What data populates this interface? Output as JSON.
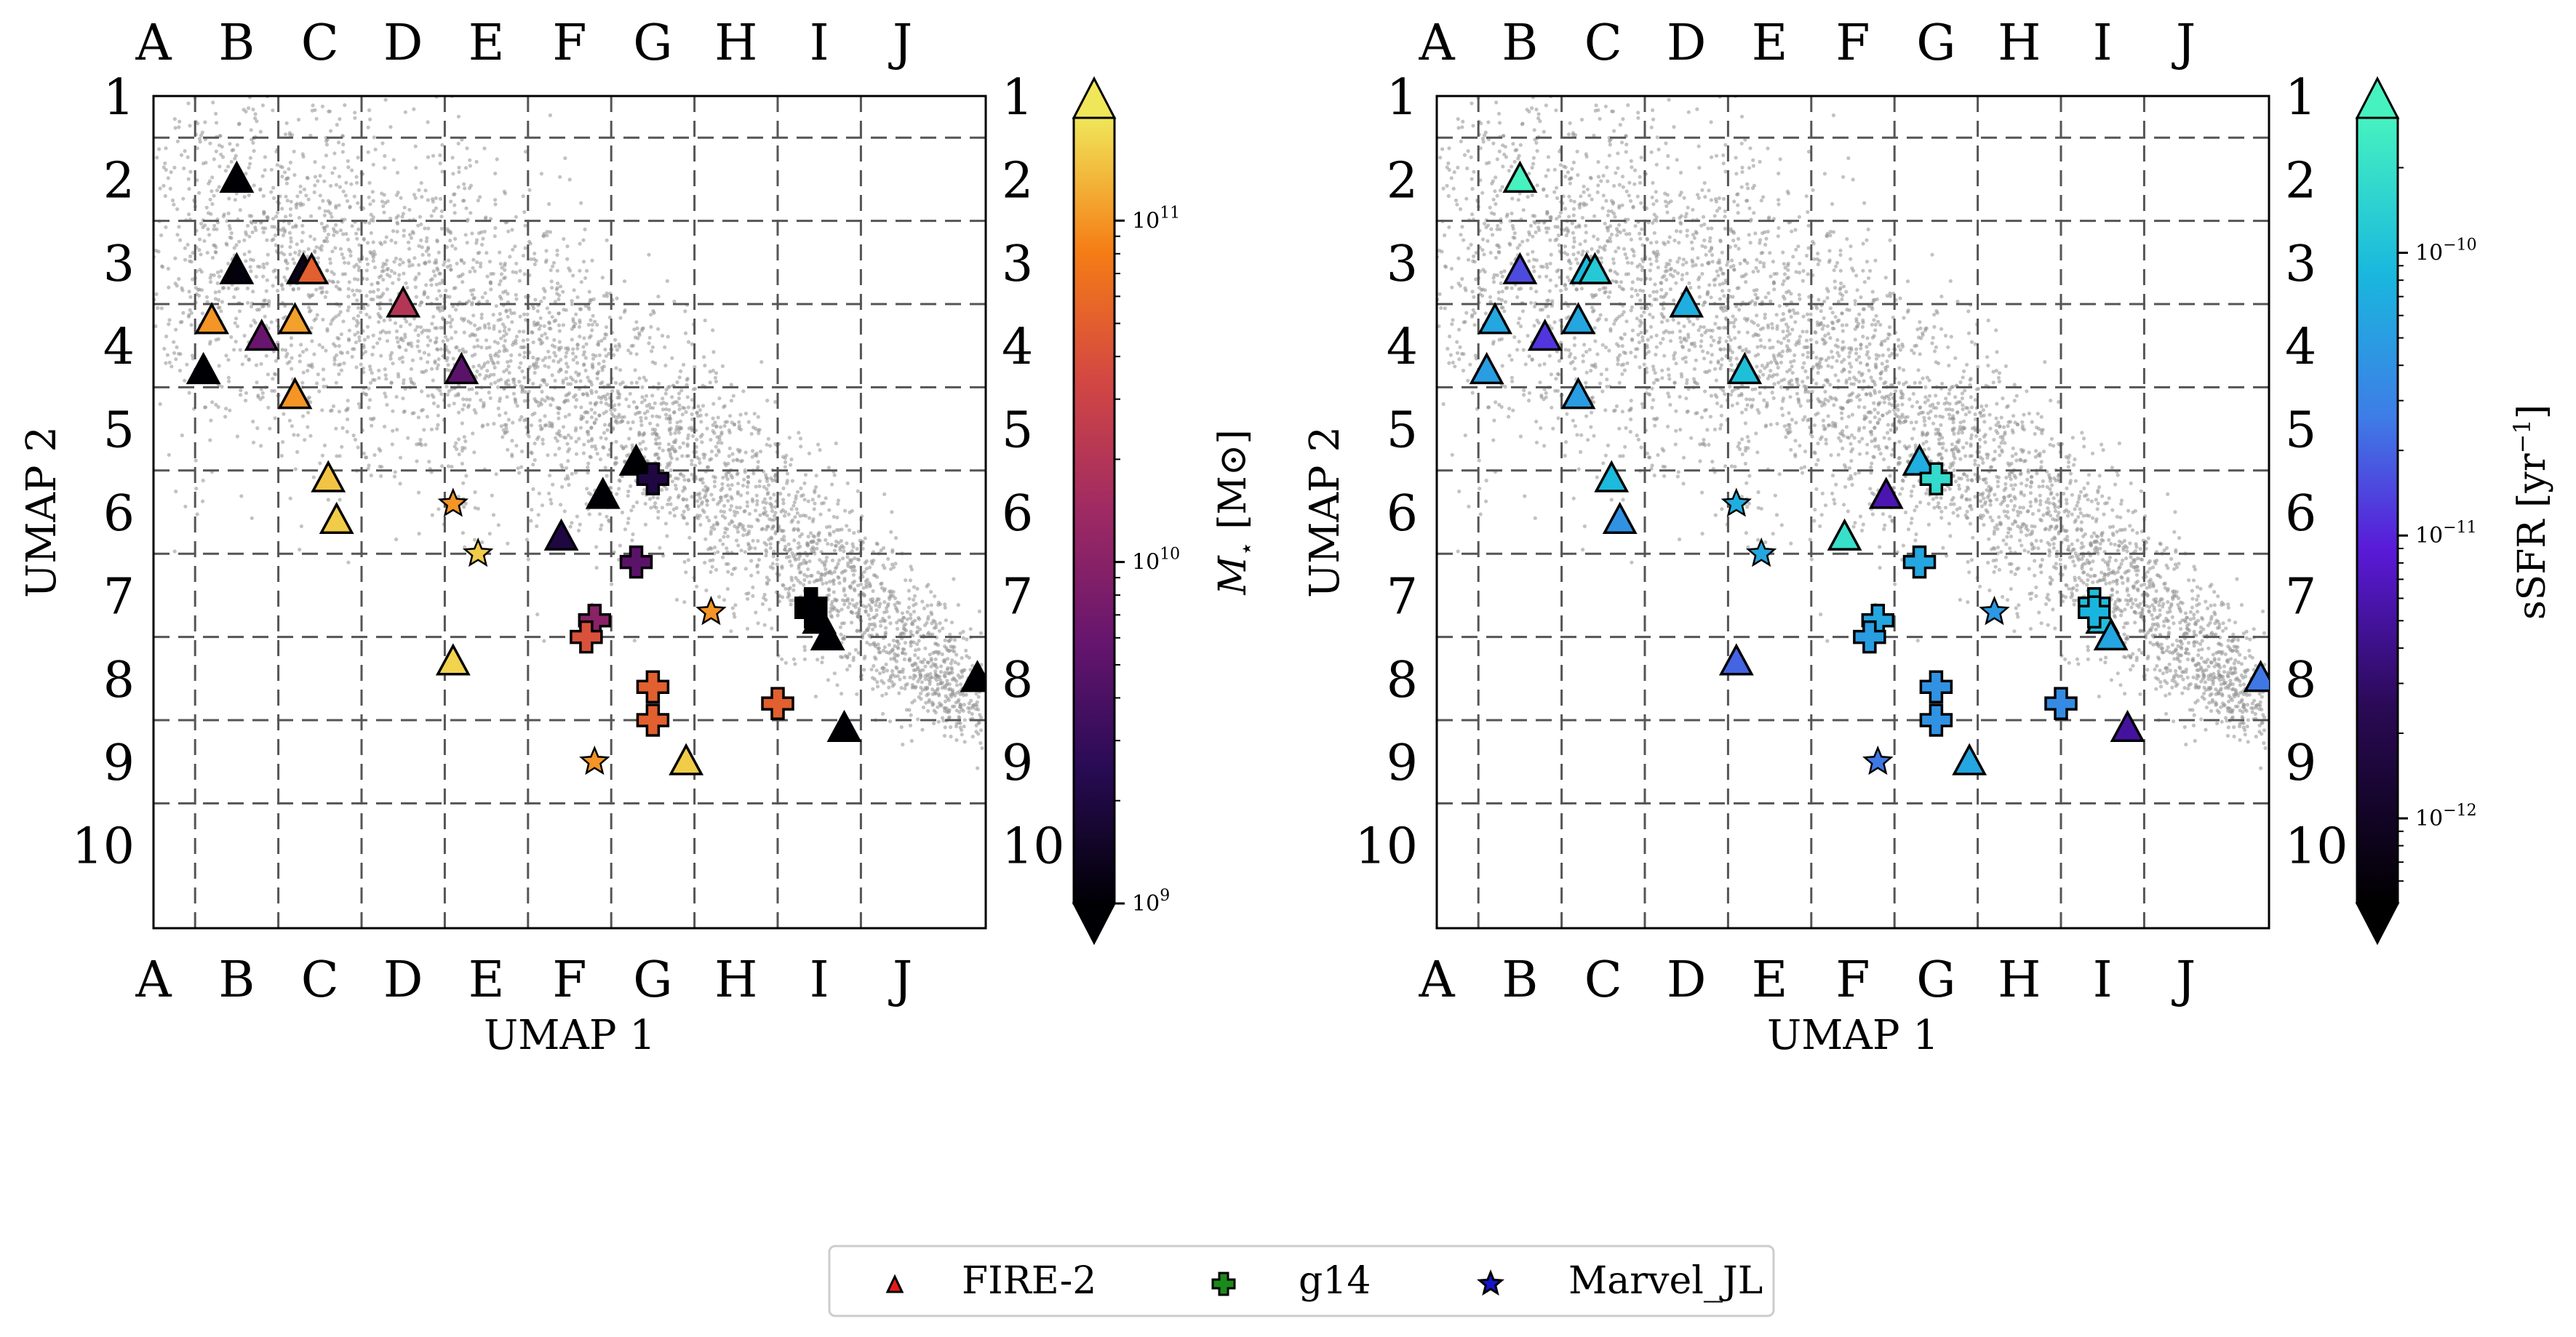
{
  "colors": {
    "background_points": "#8f8f8f",
    "grid": "#555555",
    "legend_fire2": "#e41a1c",
    "legend_g14": "#1a8a1a",
    "legend_marvel": "#1515c8"
  },
  "grid_cells": {
    "columns": [
      "A",
      "B",
      "C",
      "D",
      "E",
      "F",
      "G",
      "H",
      "I",
      "J"
    ],
    "rows": [
      "1",
      "2",
      "3",
      "4",
      "5",
      "6",
      "7",
      "8",
      "9",
      "10"
    ]
  },
  "legend": {
    "items": [
      {
        "label": "FIRE-2",
        "marker": "triangle",
        "icon": "triangle-marker-icon"
      },
      {
        "label": "g14",
        "marker": "plus",
        "icon": "plus-marker-icon"
      },
      {
        "label": "Marvel_JL",
        "marker": "star",
        "icon": "star-marker-icon"
      }
    ]
  },
  "chart_data": [
    {
      "type": "scatter",
      "xlabel": "UMAP 1",
      "ylabel": "UMAP 2",
      "xlim": [
        0,
        10
      ],
      "ylim": [
        10,
        0
      ],
      "grid": true,
      "background": "UMAP embedding of simulated galaxies (grey points)",
      "colorbar": {
        "label": "M⋆ [M⊙]",
        "label_main": "M",
        "label_sub": "⋆",
        "label_unit": " [M⊙]",
        "scale": "log",
        "colormap": "inferno",
        "range": [
          1000000000.0,
          200000000000.0
        ],
        "ticks": [
          {
            "value": 1000000000.0,
            "base": "10",
            "exp": "9"
          },
          {
            "value": 10000000000.0,
            "base": "10",
            "exp": "10"
          },
          {
            "value": 100000000000.0,
            "base": "10",
            "exp": "11"
          }
        ]
      },
      "series": [
        {
          "name": "FIRE-2",
          "marker": "triangle",
          "points": [
            {
              "x": 1.0,
              "y": 1.0,
              "c": 1000000000.0
            },
            {
              "x": 1.0,
              "y": 2.1,
              "c": 1100000000.0
            },
            {
              "x": 1.8,
              "y": 2.1,
              "c": 1300000000.0
            },
            {
              "x": 1.9,
              "y": 2.1,
              "c": 50000000000.0
            },
            {
              "x": 0.7,
              "y": 2.7,
              "c": 100000000000.0
            },
            {
              "x": 1.3,
              "y": 2.9,
              "c": 6000000000.0
            },
            {
              "x": 1.7,
              "y": 2.7,
              "c": 110000000000.0
            },
            {
              "x": 3.0,
              "y": 2.5,
              "c": 20000000000.0
            },
            {
              "x": 0.6,
              "y": 3.3,
              "c": 1000000000.0
            },
            {
              "x": 1.7,
              "y": 3.6,
              "c": 100000000000.0
            },
            {
              "x": 3.7,
              "y": 3.3,
              "c": 5000000000.0
            },
            {
              "x": 2.1,
              "y": 4.6,
              "c": 150000000000.0
            },
            {
              "x": 2.2,
              "y": 5.1,
              "c": 160000000000.0
            },
            {
              "x": 5.8,
              "y": 4.4,
              "c": 1000000000.0
            },
            {
              "x": 5.4,
              "y": 4.8,
              "c": 1000000000.0
            },
            {
              "x": 4.9,
              "y": 5.3,
              "c": 2000000000.0
            },
            {
              "x": 3.6,
              "y": 6.8,
              "c": 170000000000.0
            },
            {
              "x": 8.0,
              "y": 6.3,
              "c": 1000000000.0
            },
            {
              "x": 8.1,
              "y": 6.5,
              "c": 1000000000.0
            },
            {
              "x": 8.3,
              "y": 7.6,
              "c": 1000000000.0
            },
            {
              "x": 6.4,
              "y": 8.0,
              "c": 160000000000.0
            },
            {
              "x": 9.9,
              "y": 7.0,
              "c": 1000000000.0
            }
          ]
        },
        {
          "name": "g14",
          "marker": "plus",
          "points": [
            {
              "x": 6.0,
              "y": 4.6,
              "c": 2000000000.0
            },
            {
              "x": 5.8,
              "y": 5.6,
              "c": 5000000000.0
            },
            {
              "x": 5.3,
              "y": 6.3,
              "c": 10000000000.0
            },
            {
              "x": 5.2,
              "y": 6.5,
              "c": 40000000000.0
            },
            {
              "x": 7.9,
              "y": 6.1,
              "c": 1000000000.0
            },
            {
              "x": 7.9,
              "y": 6.2,
              "c": 1000000000.0
            },
            {
              "x": 6.0,
              "y": 7.1,
              "c": 50000000000.0
            },
            {
              "x": 6.0,
              "y": 7.5,
              "c": 50000000000.0
            },
            {
              "x": 7.5,
              "y": 7.3,
              "c": 50000000000.0
            }
          ]
        },
        {
          "name": "Marvel_JL",
          "marker": "star",
          "points": [
            {
              "x": 3.6,
              "y": 4.9,
              "c": 100000000000.0
            },
            {
              "x": 3.9,
              "y": 5.5,
              "c": 160000000000.0
            },
            {
              "x": 6.7,
              "y": 6.2,
              "c": 100000000000.0
            },
            {
              "x": 5.3,
              "y": 8.0,
              "c": 100000000000.0
            }
          ]
        }
      ]
    },
    {
      "type": "scatter",
      "xlabel": "UMAP 1",
      "ylabel": "UMAP 2",
      "xlim": [
        0,
        10
      ],
      "ylim": [
        10,
        0
      ],
      "grid": true,
      "background": "UMAP embedding of simulated galaxies (grey points)",
      "colorbar": {
        "label": "sSFR [yr⁻¹]",
        "label_main": "sSFR [yr",
        "label_sup": "−1",
        "label_end": "]",
        "scale": "log",
        "colormap": "cool (black-purple-blue-cyan-aquamarine)",
        "range": [
          5e-13,
          3e-10
        ],
        "ticks": [
          {
            "value": 1e-12,
            "base": "10",
            "exp": "−12"
          },
          {
            "value": 1e-11,
            "base": "10",
            "exp": "−11"
          },
          {
            "value": 1e-10,
            "base": "10",
            "exp": "−10"
          }
        ]
      },
      "series": [
        {
          "name": "FIRE-2",
          "marker": "triangle",
          "points": [
            {
              "x": 1.0,
              "y": 1.0,
              "c": 3e-10
            },
            {
              "x": 1.0,
              "y": 2.1,
              "c": 1.5e-11
            },
            {
              "x": 1.8,
              "y": 2.1,
              "c": 9e-11
            },
            {
              "x": 1.9,
              "y": 2.1,
              "c": 1.2e-10
            },
            {
              "x": 0.7,
              "y": 2.7,
              "c": 6e-11
            },
            {
              "x": 1.3,
              "y": 2.9,
              "c": 1.2e-11
            },
            {
              "x": 1.7,
              "y": 2.7,
              "c": 6e-11
            },
            {
              "x": 3.0,
              "y": 2.5,
              "c": 7e-11
            },
            {
              "x": 0.6,
              "y": 3.3,
              "c": 5e-11
            },
            {
              "x": 1.7,
              "y": 3.6,
              "c": 5e-11
            },
            {
              "x": 3.7,
              "y": 3.3,
              "c": 1e-10
            },
            {
              "x": 2.1,
              "y": 4.6,
              "c": 9e-11
            },
            {
              "x": 2.2,
              "y": 5.1,
              "c": 4e-11
            },
            {
              "x": 5.8,
              "y": 4.4,
              "c": 7e-11
            },
            {
              "x": 5.4,
              "y": 4.8,
              "c": 6e-12
            },
            {
              "x": 4.9,
              "y": 5.3,
              "c": 2e-10
            },
            {
              "x": 3.6,
              "y": 6.8,
              "c": 2e-11
            },
            {
              "x": 8.0,
              "y": 6.3,
              "c": 1e-10
            },
            {
              "x": 8.1,
              "y": 6.5,
              "c": 6e-11
            },
            {
              "x": 8.3,
              "y": 7.6,
              "c": 5e-12
            },
            {
              "x": 6.4,
              "y": 8.0,
              "c": 6e-11
            },
            {
              "x": 9.9,
              "y": 7.0,
              "c": 2.5e-11
            }
          ]
        },
        {
          "name": "g14",
          "marker": "plus",
          "points": [
            {
              "x": 6.0,
              "y": 4.6,
              "c": 1.8e-10
            },
            {
              "x": 5.8,
              "y": 5.6,
              "c": 6e-11
            },
            {
              "x": 5.3,
              "y": 6.3,
              "c": 6e-11
            },
            {
              "x": 5.2,
              "y": 6.5,
              "c": 5e-11
            },
            {
              "x": 7.9,
              "y": 6.1,
              "c": 1e-10
            },
            {
              "x": 7.9,
              "y": 6.2,
              "c": 8e-11
            },
            {
              "x": 6.0,
              "y": 7.1,
              "c": 4e-11
            },
            {
              "x": 6.0,
              "y": 7.5,
              "c": 4e-11
            },
            {
              "x": 7.5,
              "y": 7.3,
              "c": 3.5e-11
            }
          ]
        },
        {
          "name": "Marvel_JL",
          "marker": "star",
          "points": [
            {
              "x": 3.6,
              "y": 4.9,
              "c": 7e-11
            },
            {
              "x": 3.9,
              "y": 5.5,
              "c": 6e-11
            },
            {
              "x": 6.7,
              "y": 6.2,
              "c": 4.5e-11
            },
            {
              "x": 5.3,
              "y": 8.0,
              "c": 2.5e-11
            }
          ]
        }
      ]
    }
  ]
}
